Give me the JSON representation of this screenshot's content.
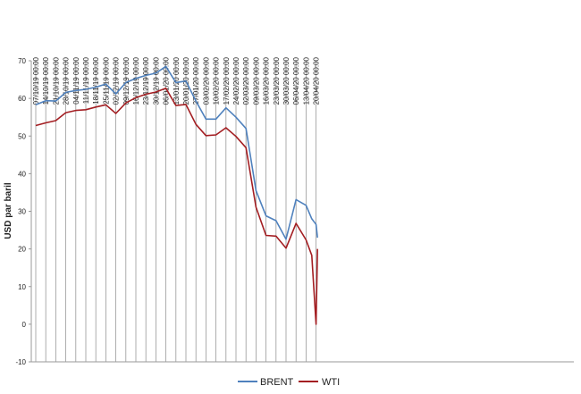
{
  "chart_data": {
    "type": "line",
    "title": "",
    "xlabel": "",
    "ylabel": "USD par baril",
    "ylim": [
      -10,
      70
    ],
    "yticks": [
      -10,
      0,
      10,
      20,
      30,
      40,
      50,
      60,
      70
    ],
    "grid": "vertical",
    "legend": "bottom",
    "x_tick_labels": [
      "07/10/19 00:00",
      "14/10/19 00:00",
      "21/10/19 00:00",
      "28/10/19 00:00",
      "04/11/19 00:00",
      "11/11/19 00:00",
      "18/11/19 00:00",
      "25/11/19 00:00",
      "02/12/19 00:00",
      "09/12/19 00:00",
      "16/12/19 00:00",
      "23/12/19 00:00",
      "30/12/19 00:00",
      "06/01/20 00:00",
      "13/01/20 00:00",
      "20/01/20 00:00",
      "27/01/20 00:00",
      "03/02/20 00:00",
      "10/02/20 00:00",
      "17/02/20 00:00",
      "24/02/20 00:00",
      "02/03/20 00:00",
      "09/03/20 00:00",
      "16/03/20 00:00",
      "23/03/20 00:00",
      "30/03/20 00:00",
      "06/04/20 00:00",
      "13/04/20 00:00",
      "20/04/20 00:00"
    ],
    "x_points": [
      "07/10/19",
      "14/10/19",
      "21/10/19",
      "28/10/19",
      "04/11/19",
      "11/11/19",
      "18/11/19",
      "25/11/19",
      "02/12/19",
      "09/12/19",
      "16/12/19",
      "23/12/19",
      "30/12/19",
      "06/01/20",
      "13/01/20",
      "20/01/20",
      "27/01/20",
      "03/02/20",
      "10/02/20",
      "17/02/20",
      "24/02/20",
      "02/03/20",
      "09/03/20",
      "16/03/20",
      "23/03/20",
      "30/03/20",
      "06/04/20",
      "13/04/20",
      "17/04/20",
      "20/04/20",
      "21/04/20"
    ],
    "series": [
      {
        "name": "BRENT",
        "color": "#4f81bd",
        "values": [
          58.3,
          59.4,
          59.3,
          61.6,
          62.1,
          62.4,
          63.0,
          63.8,
          61.2,
          64.2,
          65.3,
          66.1,
          66.7,
          68.5,
          64.2,
          64.6,
          59.3,
          54.5,
          54.5,
          57.5,
          55.0,
          52.0,
          35.5,
          28.8,
          27.5,
          22.6,
          33.1,
          31.6,
          28.0,
          26.5,
          23.0
        ]
      },
      {
        "name": "WTI",
        "color": "#a31e22",
        "values": [
          52.8,
          53.5,
          54.1,
          56.2,
          56.8,
          57.0,
          57.7,
          58.3,
          56.0,
          58.8,
          60.2,
          61.1,
          61.7,
          62.7,
          58.1,
          58.4,
          53.1,
          50.1,
          50.3,
          52.2,
          49.9,
          46.9,
          31.1,
          23.6,
          23.4,
          20.2,
          26.8,
          22.4,
          18.3,
          0.0,
          20.0
        ]
      }
    ]
  }
}
